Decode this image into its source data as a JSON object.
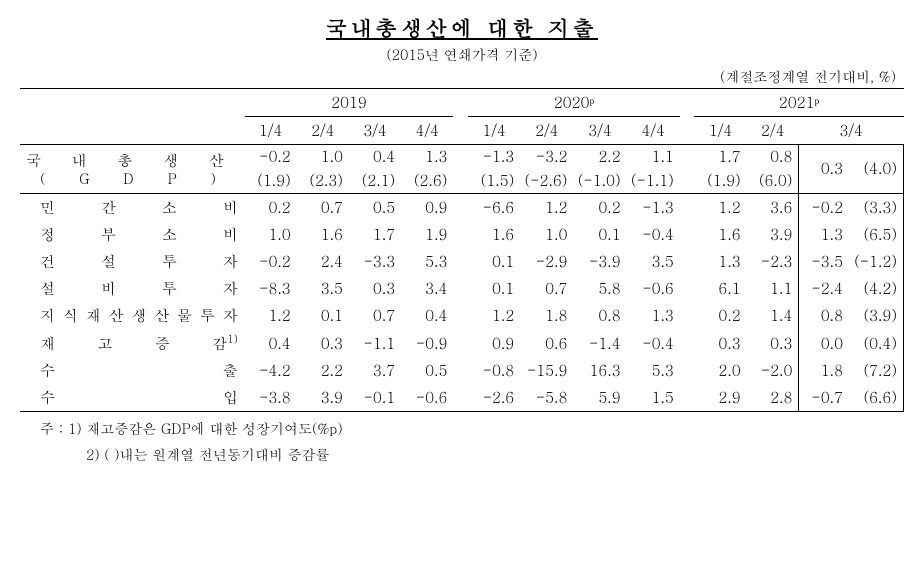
{
  "title": "국내총생산에 대한 지출",
  "subtitle": "(2015년 연쇄가격 기준)",
  "unit_note": "(계절조정계열 전기대비, %)",
  "years": [
    "2019",
    "2020ᵖ",
    "2021ᵖ"
  ],
  "quarters_full": [
    "1/4",
    "2/4",
    "3/4",
    "4/4"
  ],
  "quarters_2021": [
    "1/4",
    "2/4",
    "3/4"
  ],
  "rows": [
    {
      "label": "국내총생산",
      "sublabel": "( G D P )",
      "is_gdp": true,
      "vals": [
        "-0.2",
        "1.0",
        "0.4",
        "1.3",
        "-1.3",
        "-3.2",
        "2.2",
        "1.1",
        "1.7",
        "0.8"
      ],
      "vals_paren": [
        "(1.9)",
        "(2.3)",
        "(2.1)",
        "(2.6)",
        "(1.5)",
        "(-2.6)",
        "(-1.0)",
        "(-1.1)",
        "(1.9)",
        "(6.0)"
      ],
      "box_main": "0.3",
      "box_paren": "(4.0)"
    },
    {
      "label": "민간소비",
      "indent": true,
      "vals": [
        "0.2",
        "0.7",
        "0.5",
        "0.9",
        "-6.6",
        "1.2",
        "0.2",
        "-1.3",
        "1.2",
        "3.6"
      ],
      "box_main": "-0.2",
      "box_paren": "(3.3)"
    },
    {
      "label": "정부소비",
      "indent": true,
      "vals": [
        "1.0",
        "1.6",
        "1.7",
        "1.9",
        "1.6",
        "1.0",
        "0.1",
        "-0.4",
        "1.6",
        "3.9"
      ],
      "box_main": "1.3",
      "box_paren": "(6.5)"
    },
    {
      "label": "건설투자",
      "indent": true,
      "vals": [
        "-0.2",
        "2.4",
        "-3.3",
        "5.3",
        "0.1",
        "-2.9",
        "-3.9",
        "3.5",
        "1.3",
        "-2.3"
      ],
      "box_main": "-3.5",
      "box_paren": "(-1.2)"
    },
    {
      "label": "설비투자",
      "indent": true,
      "vals": [
        "-8.3",
        "3.5",
        "0.3",
        "3.4",
        "0.1",
        "0.7",
        "5.8",
        "-0.6",
        "6.1",
        "1.1"
      ],
      "box_main": "-2.4",
      "box_paren": "(4.2)"
    },
    {
      "label": "지식재산생산물투자",
      "indent": true,
      "vals": [
        "1.2",
        "0.1",
        "0.7",
        "0.4",
        "1.2",
        "1.8",
        "0.8",
        "1.3",
        "0.2",
        "1.4"
      ],
      "box_main": "0.8",
      "box_paren": "(3.9)"
    },
    {
      "label": "재고증감",
      "sup": "1)",
      "indent": true,
      "vals": [
        "0.4",
        "0.3",
        "-1.1",
        "-0.9",
        "0.9",
        "0.6",
        "-1.4",
        "-0.4",
        "0.3",
        "0.3"
      ],
      "box_main": "0.0",
      "box_paren": "(0.4)"
    },
    {
      "label": "수출",
      "indent": true,
      "wide": true,
      "vals": [
        "-4.2",
        "2.2",
        "3.7",
        "0.5",
        "-0.8",
        "-15.9",
        "16.3",
        "5.3",
        "2.0",
        "-2.0"
      ],
      "box_main": "1.8",
      "box_paren": "(7.2)"
    },
    {
      "label": "수입",
      "indent": true,
      "wide": true,
      "vals": [
        "-3.8",
        "3.9",
        "-0.1",
        "-0.6",
        "-2.6",
        "-5.8",
        "5.9",
        "1.5",
        "2.9",
        "2.8"
      ],
      "box_main": "-0.7",
      "box_paren": "(6.6)"
    }
  ],
  "footnotes": [
    "주  :  1)  재고증감은  GDP에  대한  성장기여도(%p)",
    "2)  (   )내는  원계열  전년동기대비  증감률"
  ],
  "style": {
    "col_widths": {
      "label": 180,
      "gap": 14,
      "num": 50,
      "box_num": 48,
      "box_paren": 52
    }
  }
}
